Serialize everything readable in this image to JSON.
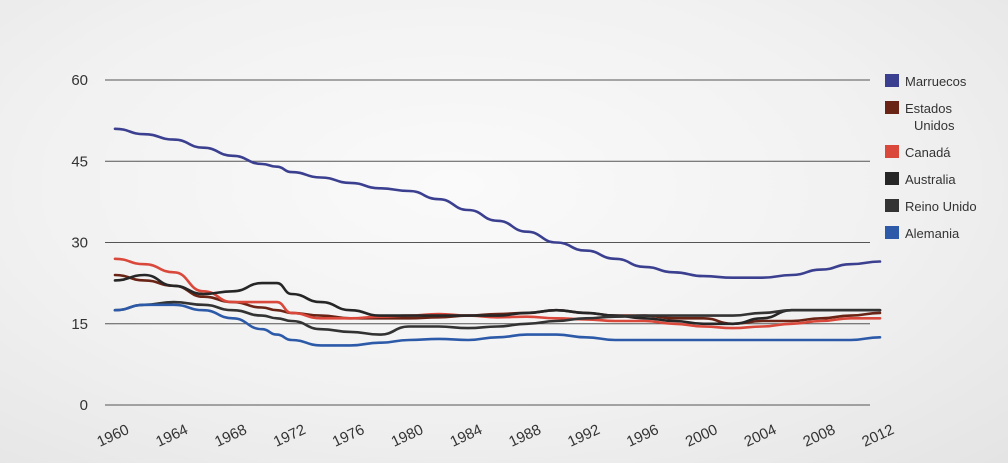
{
  "chart_data": {
    "type": "line",
    "x": [
      1960,
      1962,
      1964,
      1966,
      1968,
      1970,
      1971,
      1972,
      1974,
      1976,
      1978,
      1980,
      1982,
      1984,
      1986,
      1988,
      1990,
      1992,
      1994,
      1996,
      1998,
      2000,
      2002,
      2004,
      2006,
      2008,
      2010,
      2012
    ],
    "x_ticks": [
      "1960",
      "1964",
      "1968",
      "1972",
      "1976",
      "1980",
      "1984",
      "1988",
      "1992",
      "1996",
      "2000",
      "2004",
      "2008",
      "2012"
    ],
    "y_ticks": [
      "0",
      "15",
      "30",
      "45",
      "60"
    ],
    "ylim": [
      0,
      60
    ],
    "xlim": [
      1960,
      2012
    ],
    "grid": true,
    "legend_position": "right",
    "series": [
      {
        "name": "Marruecos",
        "color": "#3b3f8f",
        "values": [
          51,
          50,
          49,
          47.5,
          46,
          44.5,
          44,
          43,
          42,
          41,
          40,
          39.5,
          38,
          36,
          34,
          32,
          30,
          28.5,
          27,
          25.5,
          24.5,
          23.8,
          23.5,
          23.5,
          24,
          25,
          26,
          26.5
        ]
      },
      {
        "name": "Estados\nUnidos",
        "color": "#6a2416",
        "values": [
          24,
          23,
          22,
          20,
          19,
          18,
          17.5,
          17,
          16.5,
          16,
          16,
          16,
          16.2,
          16.5,
          16.8,
          17,
          17.5,
          17,
          16.5,
          16.5,
          16,
          16,
          15,
          15.5,
          15.5,
          16,
          16.5,
          17
        ]
      },
      {
        "name": "Canadá",
        "color": "#d9483a",
        "values": [
          27,
          26,
          24.5,
          21,
          19,
          19,
          19,
          17,
          16,
          16,
          16.3,
          16.5,
          16.8,
          16.5,
          16.2,
          16.3,
          16,
          15.8,
          15.5,
          15.5,
          15,
          14.5,
          14.2,
          14.5,
          15,
          15.5,
          16,
          16
        ]
      },
      {
        "name": "Australia",
        "color": "#262626",
        "values": [
          23,
          24,
          22,
          20.5,
          21,
          22.5,
          22.5,
          20.5,
          19,
          17.5,
          16.5,
          16.5,
          16.5,
          16.5,
          16.5,
          17,
          17.5,
          17,
          16.5,
          16,
          15.5,
          15,
          15,
          16,
          17.5,
          17.5,
          17.5,
          17.5
        ]
      },
      {
        "name": "Reino Unido",
        "color": "#333333",
        "values": [
          17.5,
          18.5,
          19,
          18.5,
          17.5,
          16.5,
          16,
          15.5,
          14,
          13.5,
          13,
          14.5,
          14.5,
          14.2,
          14.5,
          15,
          15.5,
          16,
          16.3,
          16.5,
          16.5,
          16.5,
          16.5,
          17,
          17.5,
          17.5,
          17.5,
          17.5
        ]
      },
      {
        "name": "Alemania",
        "color": "#2c5aa8",
        "values": [
          17.5,
          18.5,
          18.5,
          17.5,
          16,
          14,
          13,
          12,
          11,
          11,
          11.5,
          12,
          12.2,
          12,
          12.5,
          13,
          13,
          12.5,
          12,
          12,
          12,
          12,
          12,
          12,
          12,
          12,
          12,
          12.5
        ]
      }
    ]
  }
}
